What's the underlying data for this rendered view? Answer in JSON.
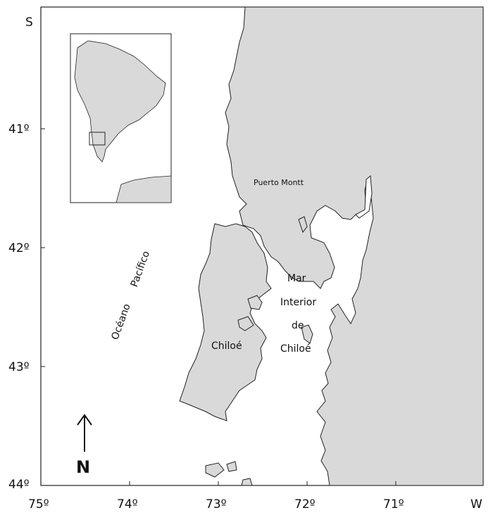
{
  "map": {
    "hemisphere_lat_label": "S",
    "hemisphere_lon_label": "W",
    "lat_ticks": [
      {
        "value": 41,
        "label": "41º"
      },
      {
        "value": 42,
        "label": "42º"
      },
      {
        "value": 43,
        "label": "43º"
      },
      {
        "value": 44,
        "label": "44º"
      }
    ],
    "lon_ticks": [
      {
        "value": 75,
        "label": "75º"
      },
      {
        "value": 74,
        "label": "74º"
      },
      {
        "value": 73,
        "label": "73º"
      },
      {
        "value": 72,
        "label": "72º"
      },
      {
        "value": 71,
        "label": "71º"
      }
    ],
    "ocean_label_1": "Océano",
    "ocean_label_2": "Pacífico",
    "place_puerto_montt": "Puerto Montt",
    "place_chiloe": "Chiloé",
    "sea_line_1": "Mar",
    "sea_line_2": "Interior",
    "sea_line_3": "de",
    "sea_line_4": "Chiloé",
    "north_label": "N",
    "colors": {
      "land": "#d9d9d9",
      "water": "#ffffff",
      "outline": "#222222"
    }
  }
}
